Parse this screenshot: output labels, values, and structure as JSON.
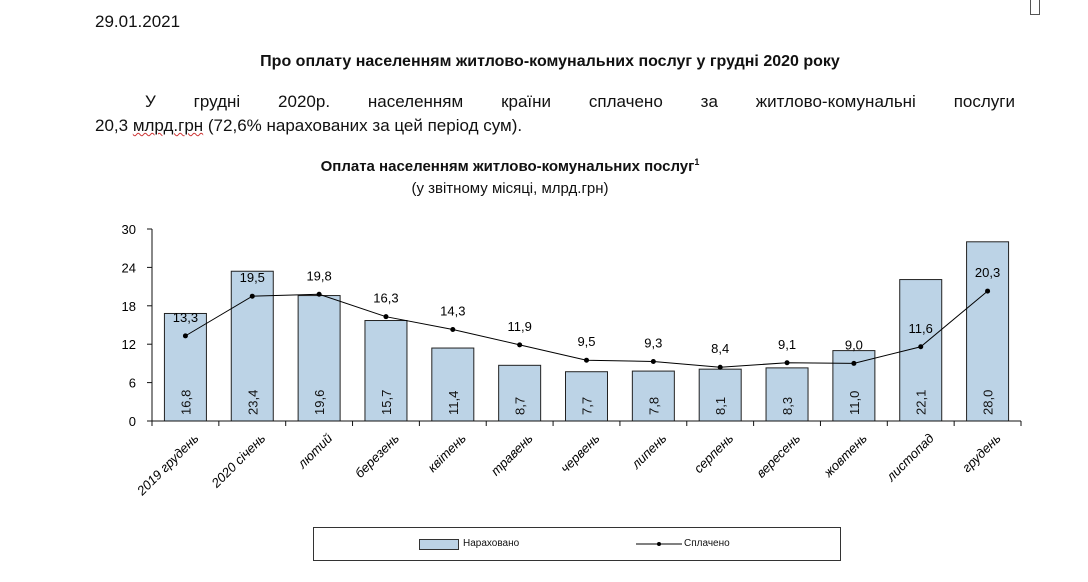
{
  "document": {
    "date": "29.01.2021",
    "heading": "Про оплату населенням житлово-комунальних послуг у грудні 2020 року",
    "paragraph_line1": "У грудні 2020р. населенням країни сплачено за житлово-комунальні послуги",
    "paragraph_value": "20,3 ",
    "paragraph_unit": "млрд.грн",
    "paragraph_rest": " (72,6% нарахованих за цей період сум)."
  },
  "chart_data": {
    "type": "bar",
    "title": "Оплата населенням житлово-комунальних послуг",
    "title_footnote": "1",
    "subtitle": "(у звітному місяці, млрд.грн)",
    "categories": [
      "2019 грудень",
      "2020 січень",
      "лютий",
      "березень",
      "квітень",
      "травень",
      "червень",
      "липень",
      "серпень",
      "вересень",
      "жовтень",
      "листопад",
      "грудень"
    ],
    "ylim": [
      0,
      30
    ],
    "yticks": [
      0,
      6,
      12,
      18,
      24,
      30
    ],
    "grid": false,
    "legend_position": "bottom",
    "series": [
      {
        "name": "Нараховано",
        "type": "bar",
        "color": "#bcd3e6",
        "values": [
          16.8,
          23.4,
          19.6,
          15.7,
          11.4,
          8.7,
          7.7,
          7.8,
          8.1,
          8.3,
          11.0,
          22.1,
          28.0
        ]
      },
      {
        "name": "Сплачено",
        "type": "line",
        "color": "#000000",
        "values": [
          13.3,
          19.5,
          19.8,
          16.3,
          14.3,
          11.9,
          9.5,
          9.3,
          8.4,
          9.1,
          9.0,
          11.6,
          20.3
        ]
      }
    ]
  }
}
